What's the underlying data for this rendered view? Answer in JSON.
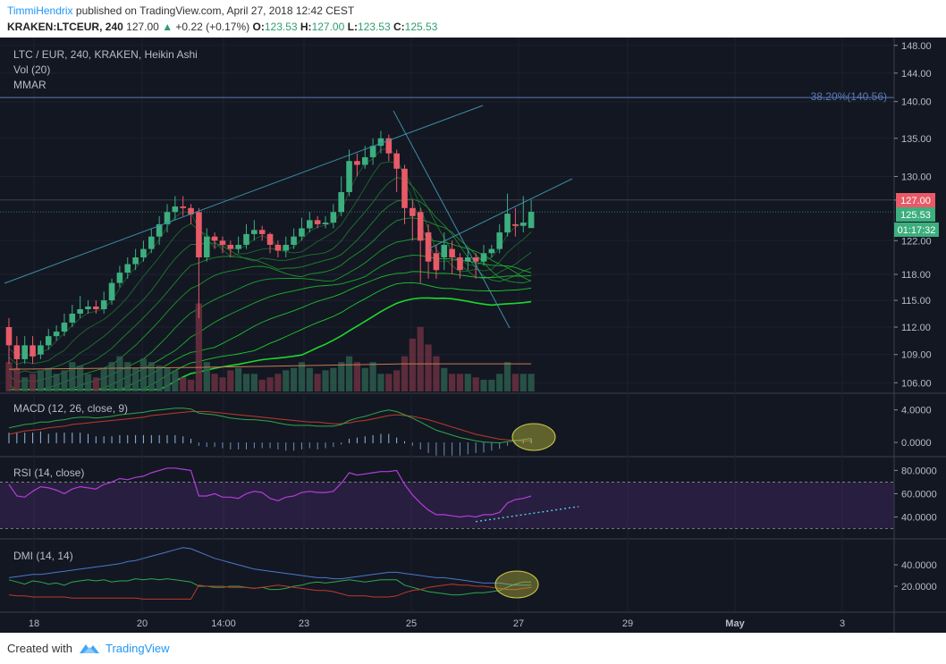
{
  "header": {
    "author": "TimmiHendrix",
    "published": " published on TradingView.com, April 27, 2018 12:42 CEST",
    "symbol": "KRAKEN:LTCEUR, 240",
    "last": "127.00",
    "arrow": "▲",
    "change": "+0.22 (+0.17%)",
    "o_label": "O:",
    "o_value": "123.53",
    "h_label": "H:",
    "h_value": "127.00",
    "l_label": "L:",
    "l_value": "123.53",
    "c_label": "C:",
    "c_value": "125.53"
  },
  "legend": {
    "title": "LTC / EUR, 240, KRAKEN, Heikin Ashi",
    "vol": "Vol (20)",
    "mmar": "MMAR"
  },
  "fib_label": "38.20%(140.56)",
  "price_badges": {
    "high": "127.00",
    "close": "125.53",
    "timer": "01:17:32"
  },
  "panes": {
    "macd": "MACD (12, 26, close, 9)",
    "rsi": "RSI (14, close)",
    "dmi": "DMI (14, 14)"
  },
  "footer": {
    "created": "Created with",
    "brand": "TradingView"
  },
  "colors": {
    "background": "#131722",
    "up": "#3dae7e",
    "down": "#e85a68",
    "ma": "#2ea84a",
    "macd_line": "#2ea84a",
    "signal_line": "#c0392b",
    "rsi": "#b13ed6",
    "dmi_adx": "#4a79c9",
    "dmi_plus": "#2ea84a",
    "dmi_minus": "#c0392b",
    "accent": "#2196f3"
  },
  "chart_data": [
    {
      "type": "candlestick",
      "title": "LTC / EUR, 240, KRAKEN, Heikin Ashi",
      "x_ticks": [
        "18",
        "20",
        "14:00",
        "23",
        "25",
        "27",
        "29",
        "May",
        "3"
      ],
      "y_ticks": [
        "148.00",
        "144.00",
        "140.00",
        "135.00",
        "130.00",
        "127.00",
        "122.00",
        "118.00",
        "115.00",
        "112.00",
        "109.00",
        "106.00"
      ],
      "y_range": [
        105,
        148.5
      ],
      "scale": "log",
      "fib_level": 140.56,
      "candles": [
        {
          "o": 112,
          "c": 110,
          "h": 113,
          "l": 108
        },
        {
          "o": 110,
          "c": 108.5,
          "h": 111,
          "l": 107.5
        },
        {
          "o": 108.5,
          "c": 110,
          "h": 111,
          "l": 108
        },
        {
          "o": 110,
          "c": 108.8,
          "h": 111,
          "l": 108
        },
        {
          "o": 109,
          "c": 110,
          "h": 110.5,
          "l": 108.5
        },
        {
          "o": 110,
          "c": 111,
          "h": 111.8,
          "l": 109.5
        },
        {
          "o": 111,
          "c": 111.5,
          "h": 112.2,
          "l": 110.5
        },
        {
          "o": 111.5,
          "c": 112.5,
          "h": 113.5,
          "l": 111
        },
        {
          "o": 112.5,
          "c": 113.5,
          "h": 114.5,
          "l": 112
        },
        {
          "o": 113.5,
          "c": 114,
          "h": 115.5,
          "l": 113
        },
        {
          "o": 114,
          "c": 114.3,
          "h": 115,
          "l": 113.5
        },
        {
          "o": 114.3,
          "c": 114,
          "h": 115,
          "l": 113.5
        },
        {
          "o": 114,
          "c": 115,
          "h": 116,
          "l": 113.5
        },
        {
          "o": 115,
          "c": 117,
          "h": 117.5,
          "l": 114.5
        },
        {
          "o": 117,
          "c": 118.2,
          "h": 119,
          "l": 116.5
        },
        {
          "o": 118.2,
          "c": 119.2,
          "h": 120,
          "l": 117.5
        },
        {
          "o": 119.2,
          "c": 120,
          "h": 121,
          "l": 118.5
        },
        {
          "o": 120,
          "c": 121,
          "h": 122,
          "l": 119.5
        },
        {
          "o": 121,
          "c": 122.5,
          "h": 123.5,
          "l": 120.5
        },
        {
          "o": 122.5,
          "c": 124,
          "h": 125,
          "l": 121.5
        },
        {
          "o": 124,
          "c": 125.5,
          "h": 126.5,
          "l": 123
        },
        {
          "o": 125.5,
          "c": 126.2,
          "h": 127.5,
          "l": 124.5
        },
        {
          "o": 126.2,
          "c": 126,
          "h": 127.5,
          "l": 125
        },
        {
          "o": 126,
          "c": 125.2,
          "h": 126.5,
          "l": 124
        },
        {
          "o": 125.5,
          "c": 120,
          "h": 126,
          "l": 113
        },
        {
          "o": 120,
          "c": 122.5,
          "h": 123.5,
          "l": 119.5
        },
        {
          "o": 122.5,
          "c": 122,
          "h": 123,
          "l": 121
        },
        {
          "o": 122,
          "c": 121.5,
          "h": 122.5,
          "l": 120.5
        },
        {
          "o": 121.5,
          "c": 121,
          "h": 122,
          "l": 120
        },
        {
          "o": 121,
          "c": 121.5,
          "h": 122.5,
          "l": 120.5
        },
        {
          "o": 121.5,
          "c": 122.8,
          "h": 124,
          "l": 121
        },
        {
          "o": 122.8,
          "c": 123.3,
          "h": 124.5,
          "l": 122
        },
        {
          "o": 123.3,
          "c": 122.8,
          "h": 123.8,
          "l": 122
        },
        {
          "o": 122.8,
          "c": 121.5,
          "h": 123,
          "l": 120.5
        },
        {
          "o": 121.5,
          "c": 120.8,
          "h": 122,
          "l": 120
        },
        {
          "o": 120.8,
          "c": 121.5,
          "h": 122.5,
          "l": 120
        },
        {
          "o": 121.5,
          "c": 122.5,
          "h": 123.5,
          "l": 121
        },
        {
          "o": 122.5,
          "c": 123.5,
          "h": 124.8,
          "l": 122
        },
        {
          "o": 123.5,
          "c": 124.5,
          "h": 125.5,
          "l": 123
        },
        {
          "o": 124.5,
          "c": 124,
          "h": 125,
          "l": 123.5
        },
        {
          "o": 124,
          "c": 124.2,
          "h": 125,
          "l": 123.5
        },
        {
          "o": 124.2,
          "c": 125.5,
          "h": 126.5,
          "l": 123.5
        },
        {
          "o": 125.5,
          "c": 128,
          "h": 130,
          "l": 125
        },
        {
          "o": 128,
          "c": 132,
          "h": 133.5,
          "l": 127.5
        },
        {
          "o": 132,
          "c": 131.5,
          "h": 133,
          "l": 130
        },
        {
          "o": 131.5,
          "c": 132.5,
          "h": 134,
          "l": 131
        },
        {
          "o": 132.5,
          "c": 134,
          "h": 135,
          "l": 131.5
        },
        {
          "o": 134,
          "c": 135,
          "h": 136,
          "l": 133
        },
        {
          "o": 135,
          "c": 133,
          "h": 135.5,
          "l": 132
        },
        {
          "o": 133,
          "c": 131,
          "h": 133.5,
          "l": 128
        },
        {
          "o": 131,
          "c": 126,
          "h": 131.5,
          "l": 124
        },
        {
          "o": 126,
          "c": 125,
          "h": 127,
          "l": 122
        },
        {
          "o": 125.5,
          "c": 122,
          "h": 126,
          "l": 117
        },
        {
          "o": 123,
          "c": 119.5,
          "h": 124,
          "l": 117.5
        },
        {
          "o": 120.5,
          "c": 118.5,
          "h": 121.5,
          "l": 117.5
        },
        {
          "o": 120,
          "c": 121.5,
          "h": 123,
          "l": 118.5
        },
        {
          "o": 121,
          "c": 120,
          "h": 122,
          "l": 118
        },
        {
          "o": 120,
          "c": 118.5,
          "h": 120.5,
          "l": 117.5
        },
        {
          "o": 119.5,
          "c": 120,
          "h": 121,
          "l": 118.5
        },
        {
          "o": 120,
          "c": 119.5,
          "h": 120.5,
          "l": 117.5
        },
        {
          "o": 119.5,
          "c": 120.5,
          "h": 121.5,
          "l": 119
        },
        {
          "o": 120.5,
          "c": 121,
          "h": 121.5,
          "l": 120
        },
        {
          "o": 121,
          "c": 123,
          "h": 124,
          "l": 120.5
        },
        {
          "o": 123,
          "c": 125.3,
          "h": 127.8,
          "l": 122.5
        },
        {
          "o": 124,
          "c": 123.8,
          "h": 126,
          "l": 122.5
        },
        {
          "o": 123.8,
          "c": 124.2,
          "h": 127.5,
          "l": 123
        },
        {
          "o": 123.53,
          "c": 125.53,
          "h": 127,
          "l": 123.53
        }
      ],
      "volume": [
        2.5,
        2,
        1.2,
        1.5,
        1.8,
        2,
        1.5,
        1.8,
        2.5,
        2.2,
        1.5,
        1.2,
        2,
        2.5,
        3,
        2.5,
        2,
        2.8,
        2.5,
        2.2,
        2,
        1.8,
        1.2,
        1,
        7.5,
        2.5,
        1.5,
        1.2,
        1.8,
        2,
        1.5,
        1.5,
        1,
        1.2,
        1.5,
        1.8,
        2,
        2.5,
        2,
        1.5,
        1.8,
        2,
        2.5,
        3,
        2.5,
        2,
        2.5,
        1.5,
        1.5,
        1.8,
        3,
        4.5,
        5.5,
        4,
        3,
        2,
        1.5,
        1.5,
        1.5,
        1.2,
        1,
        1,
        1.5,
        2.5,
        1.5,
        1.5,
        1.5
      ],
      "volume_ma_level": 2.2,
      "ma_ribbon_offsets": [
        -1,
        -2,
        -3,
        -4,
        -5.2,
        -6.5,
        -7.8,
        -9,
        -10.5,
        -12
      ]
    },
    {
      "type": "line",
      "title": "MACD (12, 26, close, 9)",
      "y_ticks": [
        "4.0000",
        "0.0000"
      ],
      "y_range": [
        -1.2,
        5.5
      ],
      "series": [
        {
          "values": [
            1.8,
            2,
            2.2,
            2.3,
            2.5,
            2.5,
            2.7,
            2.8,
            3,
            3.1,
            3.1,
            3,
            3.1,
            3.2,
            3.4,
            3.5,
            3.6,
            3.7,
            3.9,
            4,
            4.1,
            4.2,
            4.2,
            4.1,
            3.6,
            3.5,
            3.4,
            3.2,
            3,
            2.9,
            2.8,
            2.8,
            2.7,
            2.6,
            2.4,
            2.2,
            2.1,
            2.1,
            2.1,
            2,
            2,
            2,
            2.2,
            2.7,
            3,
            3.2,
            3.5,
            3.8,
            4,
            3.8,
            3.4,
            3,
            2.5,
            2,
            1.5,
            1.2,
            0.9,
            0.6,
            0.4,
            0.2,
            0.05,
            0,
            -0.05,
            0.1,
            0.2,
            0.35,
            0.5
          ]
        },
        {
          "values": [
            1,
            1.2,
            1.4,
            1.5,
            1.6,
            1.8,
            1.9,
            2,
            2.2,
            2.3,
            2.4,
            2.5,
            2.6,
            2.7,
            2.8,
            2.9,
            3,
            3.1,
            3.3,
            3.4,
            3.5,
            3.6,
            3.7,
            3.8,
            3.8,
            3.8,
            3.7,
            3.6,
            3.5,
            3.4,
            3.3,
            3.2,
            3.1,
            3,
            2.9,
            2.8,
            2.7,
            2.6,
            2.5,
            2.5,
            2.4,
            2.3,
            2.3,
            2.4,
            2.6,
            2.7,
            2.9,
            3.1,
            3.3,
            3.4,
            3.3,
            3.2,
            3,
            2.8,
            2.5,
            2.2,
            1.9,
            1.6,
            1.3,
            1,
            0.8,
            0.6,
            0.4,
            0.3,
            0.25,
            0.2,
            0.2
          ]
        }
      ]
    },
    {
      "type": "line",
      "title": "RSI (14, close)",
      "y_ticks": [
        "80.0000",
        "60.0000",
        "40.0000"
      ],
      "y_range": [
        25,
        88
      ],
      "bands": [
        70,
        30
      ],
      "series": [
        {
          "values": [
            68,
            58,
            57,
            62,
            66,
            65,
            63,
            60,
            64,
            66,
            65,
            64,
            68,
            70,
            73,
            72,
            74,
            75,
            78,
            80,
            82,
            82,
            81,
            80,
            58,
            58,
            60,
            57,
            57,
            56,
            60,
            62,
            61,
            56,
            54,
            57,
            58,
            61,
            62,
            61,
            61,
            62,
            69,
            78,
            76,
            77,
            78,
            79,
            79,
            80,
            68,
            59,
            52,
            46,
            42,
            42,
            41,
            40,
            41,
            40,
            42,
            42,
            44,
            52,
            55,
            56,
            58
          ]
        },
        {
          "values": [
            36,
            37,
            38,
            39,
            40,
            41,
            42,
            43,
            44,
            45,
            46,
            47,
            48,
            49
          ]
        }
      ]
    },
    {
      "type": "line",
      "title": "DMI (14, 14)",
      "y_ticks": [
        "40.0000",
        "20.0000"
      ],
      "y_range": [
        0,
        60
      ],
      "series": [
        {
          "values": [
            28,
            29,
            30,
            31,
            31,
            32,
            33,
            34,
            35,
            36,
            37,
            38,
            39,
            40,
            41,
            43,
            44,
            46,
            48,
            50,
            52,
            54,
            56,
            55,
            52,
            49,
            46,
            44,
            42,
            40,
            38,
            36,
            35,
            34,
            33,
            32,
            31,
            30,
            29,
            28,
            28,
            27,
            27,
            28,
            29,
            30,
            31,
            32,
            33,
            33,
            32,
            31,
            30,
            29,
            28,
            28,
            27,
            26,
            25,
            24,
            23,
            23,
            23,
            22,
            21,
            21,
            21
          ]
        },
        {
          "values": [
            26,
            24,
            22,
            25,
            24,
            22,
            23,
            21,
            24,
            25,
            26,
            25,
            26,
            24,
            25,
            25,
            27,
            26,
            27,
            26,
            27,
            26,
            25,
            24,
            20,
            20,
            19,
            19,
            20,
            20,
            19,
            18,
            19,
            17,
            17,
            18,
            20,
            21,
            23,
            24,
            23,
            24,
            25,
            26,
            25,
            24,
            25,
            26,
            26,
            26,
            21,
            19,
            17,
            15,
            14,
            13,
            12,
            12,
            13,
            14,
            14,
            15,
            16,
            19,
            22,
            24,
            24
          ]
        },
        {
          "values": [
            12,
            11,
            11,
            10,
            10,
            10,
            10,
            10,
            9,
            9,
            9,
            9,
            9,
            9,
            9,
            9,
            9,
            8,
            8,
            8,
            8,
            8,
            8,
            8,
            21,
            20,
            20,
            20,
            19,
            19,
            19,
            18,
            19,
            20,
            21,
            20,
            19,
            18,
            17,
            16,
            16,
            15,
            13,
            11,
            11,
            11,
            10,
            10,
            10,
            11,
            14,
            16,
            17,
            19,
            20,
            21,
            22,
            21,
            21,
            20,
            20,
            19,
            18,
            17,
            17,
            18,
            19
          ]
        }
      ]
    }
  ]
}
